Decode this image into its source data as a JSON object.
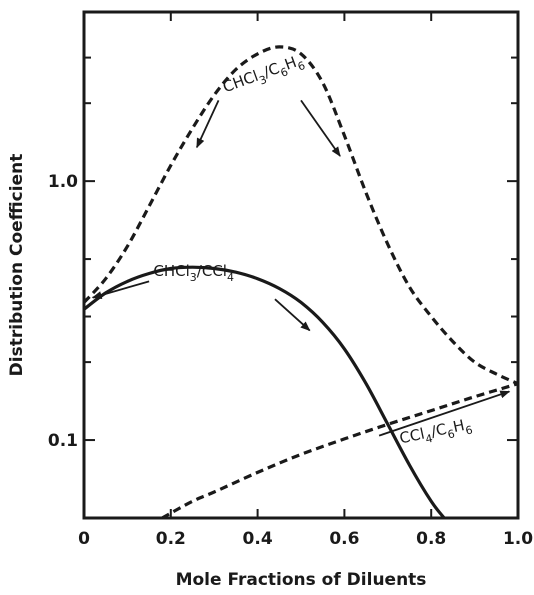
{
  "chart_data": {
    "type": "line",
    "title": "",
    "xlabel": "Mole Fractions of Diluents",
    "ylabel": "Distribution Coefficient",
    "x_scale": "linear",
    "y_scale": "log",
    "xlim": [
      0,
      1.0
    ],
    "ylim": [
      0.05,
      4.5
    ],
    "x_ticks": [
      0,
      0.2,
      0.4,
      0.6,
      0.8,
      1.0
    ],
    "x_tick_labels": [
      "0",
      "0.2",
      "0.4",
      "0.6",
      "0.8",
      "1.0"
    ],
    "y_tick_labels": [
      {
        "value": 0.1,
        "label": "0.1"
      },
      {
        "value": 1.0,
        "label": "1.0"
      }
    ],
    "y_minor_ticks": [
      0.2,
      0.3,
      0.5,
      2.0,
      3.0
    ],
    "grid": false,
    "series": [
      {
        "id": "chcl3_c6h6",
        "style": "dashed",
        "x": [
          0,
          0.05,
          0.1,
          0.15,
          0.2,
          0.25,
          0.3,
          0.35,
          0.4,
          0.45,
          0.5,
          0.55,
          0.6,
          0.65,
          0.7,
          0.75,
          0.8,
          0.85,
          0.9,
          0.95,
          1.0
        ],
        "y": [
          0.34,
          0.42,
          0.56,
          0.8,
          1.15,
          1.6,
          2.15,
          2.7,
          3.1,
          3.3,
          3.1,
          2.4,
          1.5,
          0.9,
          0.57,
          0.39,
          0.3,
          0.24,
          0.2,
          0.18,
          0.165
        ]
      },
      {
        "id": "chcl3_ccl4",
        "style": "solid",
        "x": [
          0,
          0.05,
          0.1,
          0.15,
          0.2,
          0.25,
          0.3,
          0.35,
          0.4,
          0.45,
          0.5,
          0.55,
          0.6,
          0.65,
          0.7,
          0.75,
          0.8,
          0.83
        ],
        "y": [
          0.32,
          0.37,
          0.41,
          0.44,
          0.46,
          0.465,
          0.46,
          0.445,
          0.42,
          0.385,
          0.34,
          0.285,
          0.225,
          0.165,
          0.115,
          0.08,
          0.058,
          0.05
        ]
      },
      {
        "id": "ccl4_c6h6",
        "style": "dashed",
        "x": [
          0.18,
          0.25,
          0.3,
          0.4,
          0.5,
          0.6,
          0.7,
          0.8,
          0.9,
          1.0
        ],
        "y": [
          0.05,
          0.058,
          0.063,
          0.075,
          0.088,
          0.101,
          0.115,
          0.13,
          0.147,
          0.165
        ]
      }
    ],
    "annotations": [
      {
        "id": "chcl3_c6h6",
        "parts": [
          "CHCl",
          "3",
          "/C",
          "6",
          "H",
          "6"
        ],
        "x": 0.325,
        "y": 2.2,
        "angle": -20
      },
      {
        "id": "chcl3_ccl4",
        "parts": [
          "CHCl",
          "3",
          "/CCl",
          "4"
        ],
        "x": 0.16,
        "y": 0.43,
        "angle": 0
      },
      {
        "id": "ccl4_c6h6",
        "parts": [
          "CCl",
          "4",
          "/C",
          "6",
          "H",
          "6"
        ],
        "x": 0.73,
        "y": 0.097,
        "angle": -12
      }
    ],
    "arrows": [
      {
        "from": [
          0.31,
          2.05
        ],
        "to": [
          0.26,
          1.35
        ]
      },
      {
        "from": [
          0.5,
          2.05
        ],
        "to": [
          0.59,
          1.25
        ]
      },
      {
        "from": [
          0.15,
          0.41
        ],
        "to": [
          0.02,
          0.355
        ]
      },
      {
        "from": [
          0.44,
          0.35
        ],
        "to": [
          0.52,
          0.265
        ]
      },
      {
        "from": [
          0.68,
          0.104
        ],
        "to": [
          0.98,
          0.154
        ]
      }
    ]
  }
}
